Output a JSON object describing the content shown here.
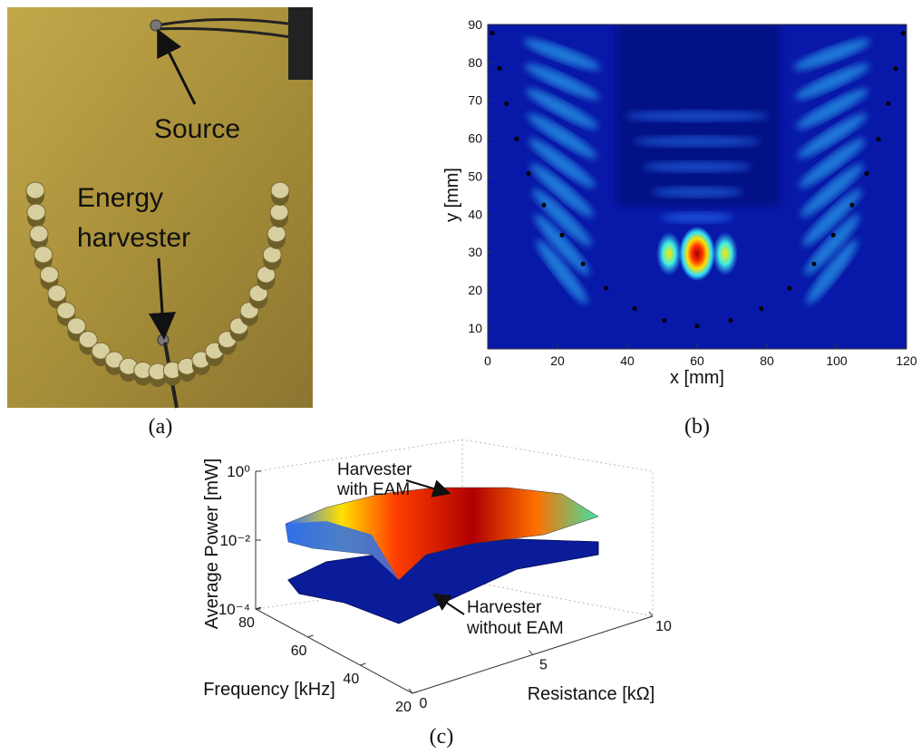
{
  "panel_a": {
    "label": "(a)",
    "annotations": [
      "Source",
      "Energy",
      "harvester"
    ]
  },
  "panel_b": {
    "label": "(b)",
    "xlabel": "x [mm]",
    "ylabel": "y [mm]",
    "xlim": [
      0,
      120
    ],
    "ylim": [
      4.5,
      90
    ],
    "xticks": [
      0,
      20,
      40,
      60,
      80,
      100,
      120
    ],
    "yticks": [
      10,
      20,
      30,
      40,
      50,
      60,
      70,
      80,
      90
    ],
    "points_x": [
      1.3,
      3.4,
      5.4,
      8.3,
      11.7,
      16.1,
      21.3,
      27.3,
      34.0,
      42.1,
      50.6,
      60,
      69.6,
      78.4,
      86.5,
      93.5,
      99,
      104.4,
      108.6,
      112,
      114.8,
      116.9,
      119
    ],
    "points_y": [
      87.7,
      78.4,
      69.1,
      59.8,
      50.7,
      42.4,
      34.5,
      26.9,
      20.5,
      15.1,
      12.0,
      10.5,
      12.0,
      15.1,
      20.5,
      26.9,
      34.5,
      42.4,
      50.7,
      59.8,
      69.1,
      78.4,
      87.7
    ]
  },
  "panel_c": {
    "label": "(c)",
    "zlabel": "Average Power [mW]",
    "xlabel": "Frequency [kHz]",
    "ylabel": "Resistance [kΩ]",
    "zticks": [
      {
        "value": 1,
        "label": "10⁰"
      },
      {
        "value": 0.01,
        "label": "10⁻²"
      },
      {
        "value": 0.0001,
        "label": "10⁻⁴"
      }
    ],
    "xticks": [
      80,
      60,
      40,
      20
    ],
    "yticks": [
      0,
      5,
      10
    ],
    "annotations": [
      [
        "Harvester",
        "with EAM"
      ],
      [
        "Harvester",
        "without EAM"
      ]
    ]
  }
}
